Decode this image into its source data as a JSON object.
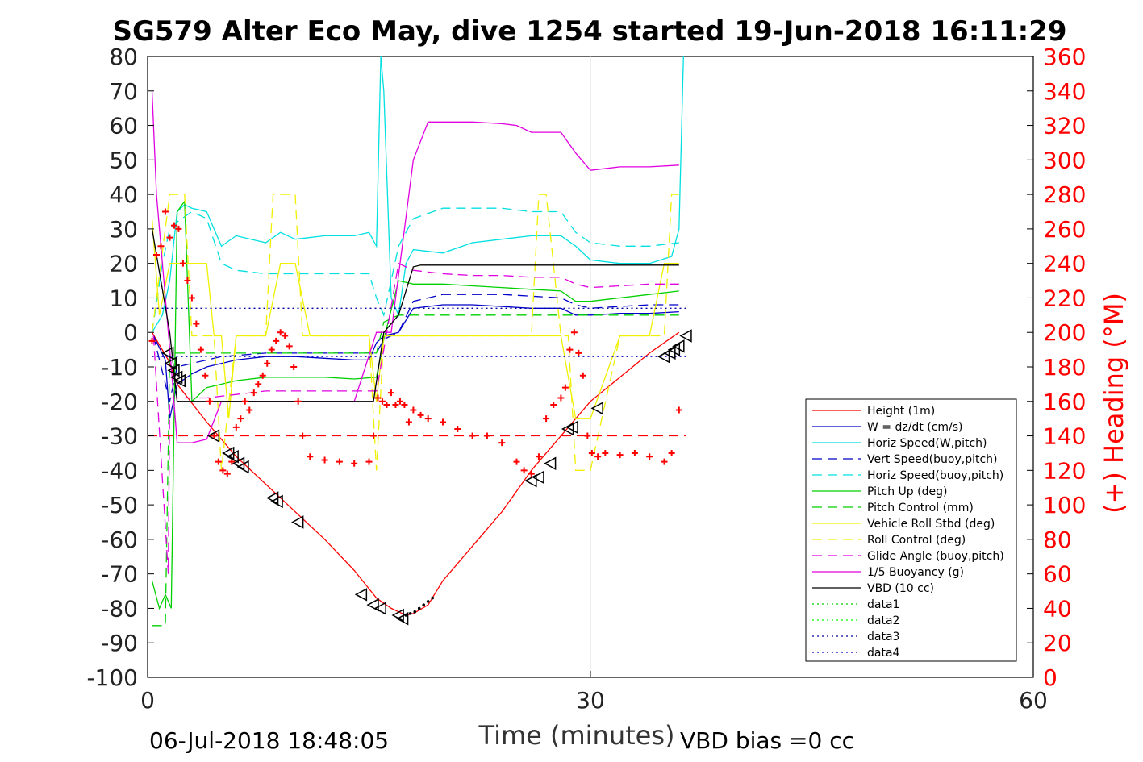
{
  "chart_data": {
    "type": "line",
    "title": "SG579 Alter Eco May, dive 1254 started 19-Jun-2018 16:11:29",
    "xlabel": "Time (minutes)",
    "ylabel_right": "(+) Heading (°M)",
    "xlim": [
      0,
      60
    ],
    "ylim": [
      -100,
      80
    ],
    "ylim_right": [
      0,
      360
    ],
    "x_ticks": [
      "0",
      "30",
      "60"
    ],
    "y_ticks": [
      "80",
      "70",
      "60",
      "50",
      "40",
      "30",
      "20",
      "10",
      "0",
      "-10",
      "-20",
      "-30",
      "-40",
      "-50",
      "-60",
      "-70",
      "-80",
      "-90",
      "-100"
    ],
    "y_right_ticks": [
      "360",
      "340",
      "320",
      "300",
      "280",
      "260",
      "240",
      "220",
      "200",
      "180",
      "160",
      "140",
      "120",
      "100",
      "80",
      "60",
      "40",
      "20",
      "0"
    ],
    "grid": "x at 30",
    "legend_position": "bottom-right",
    "footer_left": "06-Jul-2018 18:48:05",
    "footer_right": "VBD bias =0 cc",
    "colors": {
      "red": "#ff0000",
      "blue": "#0000c8",
      "cyan": "#00e0e0",
      "green": "#00d000",
      "yellow": "#f0f000",
      "magenta": "#e000e0",
      "black": "#000000",
      "data1": "#00d000",
      "data2": "#00ff00",
      "data3": "#0000a0",
      "data4": "#0000c8"
    },
    "series": [
      {
        "name": "Height (1m)",
        "color": "red",
        "dash": "solid",
        "x": [
          0.3,
          1.4,
          2,
          4,
          6,
          8,
          10,
          12,
          14,
          15.5,
          16.5,
          17,
          17.5,
          18,
          19,
          20,
          22,
          24,
          26,
          28,
          30,
          32,
          34,
          36
        ],
        "y": [
          0,
          -8,
          -15,
          -26,
          -36,
          -44,
          -52,
          -60,
          -69,
          -77,
          -80,
          -81,
          -82,
          -81.5,
          -79,
          -72,
          -62,
          -52,
          -40,
          -30,
          -20,
          -13,
          -6,
          0
        ]
      },
      {
        "name": "W = dz/dt (cm/s)",
        "color": "blue",
        "dash": "solid",
        "x": [
          0.4,
          1.2,
          1.5,
          2,
          3,
          4,
          6,
          8,
          10,
          12,
          14,
          15,
          15.5,
          16,
          17,
          18,
          20,
          22,
          24,
          26,
          28,
          29,
          30,
          32,
          34,
          36
        ],
        "y": [
          -1,
          -8,
          -25,
          -15,
          -12,
          -10,
          -8,
          -7,
          -7,
          -7.5,
          -8,
          -8,
          -3,
          -1,
          0,
          7,
          8,
          8,
          7.5,
          7,
          7,
          5,
          5,
          5.5,
          5.5,
          6
        ]
      },
      {
        "name": "Horiz Speed(W,pitch)",
        "color": "cyan",
        "dash": "solid",
        "x": [
          0.3,
          1,
          1.5,
          2,
          2.5,
          3,
          4,
          5,
          6,
          7,
          8,
          9,
          10,
          12,
          14,
          15,
          15.5,
          15.8,
          16,
          16.5,
          17,
          17.5,
          18,
          20,
          22,
          24,
          26,
          28,
          29,
          30,
          32,
          34,
          35.5,
          36,
          36.3
        ],
        "y": [
          0,
          5,
          15,
          35,
          37,
          36,
          35,
          25,
          28,
          27,
          26,
          29,
          27,
          28,
          28,
          29,
          25,
          80,
          70,
          10,
          5,
          20,
          24,
          23,
          26,
          27,
          28,
          28,
          25,
          21,
          20,
          20,
          22,
          30,
          80
        ]
      },
      {
        "name": "Vert Speed(buoy,pitch)",
        "color": "blue",
        "dash": "dash",
        "x": [
          0.4,
          1.5,
          2,
          3,
          5,
          8,
          10,
          12,
          14,
          15.5,
          16,
          17,
          18,
          20,
          24,
          26,
          28,
          29,
          30,
          32,
          34,
          36
        ],
        "y": [
          -1,
          -20,
          -10,
          -9,
          -7,
          -6,
          -6,
          -6,
          -6,
          -6,
          -2,
          0,
          9,
          11,
          11,
          10.5,
          10,
          8,
          7,
          7.5,
          8,
          8
        ]
      },
      {
        "name": "Horiz Speed(buoy,pitch)",
        "color": "cyan",
        "dash": "dash",
        "x": [
          0.3,
          1,
          1.5,
          2,
          3,
          4,
          5,
          6,
          8,
          10,
          12,
          14,
          15,
          15.5,
          16,
          17,
          18,
          20,
          22,
          24,
          26,
          28,
          29,
          30,
          32,
          34,
          36
        ],
        "y": [
          0,
          20,
          30,
          32,
          35,
          33,
          20,
          18,
          17,
          17,
          17,
          17,
          17,
          10,
          5,
          25,
          33,
          36,
          36,
          36,
          35,
          35,
          29,
          26,
          25,
          25,
          26
        ]
      },
      {
        "name": "Pitch Up (deg)",
        "color": "green",
        "dash": "solid",
        "x": [
          0.3,
          0.8,
          1.2,
          1.6,
          2,
          2.5,
          3,
          4,
          6,
          8,
          10,
          12,
          14,
          15.5,
          16,
          17,
          18,
          20,
          22,
          24,
          26,
          28,
          29,
          30,
          32,
          34,
          36
        ],
        "y": [
          -72,
          -80,
          -76,
          -80,
          35,
          38,
          -20,
          -16,
          -14,
          -13,
          -13,
          -13,
          -13.5,
          -13,
          -2,
          15,
          14,
          14,
          13.5,
          13,
          12.5,
          12,
          9,
          9,
          10,
          11,
          12
        ]
      },
      {
        "name": "Pitch Control (mm)",
        "color": "green",
        "dash": "dash",
        "x": [
          0.3,
          1.2,
          1.5,
          2,
          2.5,
          4,
          6,
          8,
          10,
          12,
          14,
          15.5,
          16,
          17,
          18,
          20,
          22,
          24,
          26,
          28,
          30,
          32,
          34,
          36
        ],
        "y": [
          -85,
          -85,
          -6,
          -6,
          -6,
          -6,
          -6,
          -6,
          -6,
          -6,
          -6,
          -6,
          3,
          5,
          5,
          5,
          5,
          5,
          5,
          5,
          5,
          5,
          5,
          5
        ]
      },
      {
        "name": "Vehicle Roll Stbd (deg)",
        "color": "yellow",
        "dash": "solid",
        "x": [
          0.3,
          0.8,
          1.5,
          2,
          3,
          4,
          4.5,
          5,
          5.5,
          6,
          7,
          8,
          9,
          10,
          11,
          12,
          14,
          15,
          15.5,
          16,
          18,
          20,
          22,
          24,
          26,
          28,
          29,
          30,
          32,
          34,
          35,
          36
        ],
        "y": [
          33,
          5,
          20,
          20,
          20,
          20,
          -1,
          -1,
          -25,
          -1,
          -1,
          -1,
          20,
          20,
          -1,
          -1,
          -1,
          -1,
          -20,
          -1,
          -1,
          -1,
          -1,
          -1,
          -1,
          -1,
          -25,
          -25,
          -1,
          -1,
          20,
          20
        ]
      },
      {
        "name": "Roll Control (deg)",
        "color": "yellow",
        "dash": "dash",
        "x": [
          0.3,
          1.5,
          2.5,
          3,
          4.5,
          5,
          6,
          8,
          8.5,
          9,
          10,
          10.5,
          12,
          14,
          15,
          15.5,
          16,
          18,
          20,
          24,
          26,
          26.5,
          27,
          28,
          28.5,
          29,
          30,
          32,
          34,
          35,
          35.5,
          36
        ],
        "y": [
          0,
          40,
          40,
          -1,
          -1,
          -40,
          -1,
          -1,
          40,
          40,
          40,
          -1,
          -1,
          -1,
          -1,
          -40,
          -1,
          -1,
          -1,
          -1,
          -1,
          40,
          40,
          -1,
          -1,
          -40,
          -40,
          -1,
          -1,
          -1,
          40,
          40
        ]
      },
      {
        "name": "Glide Angle (buoy,pitch)",
        "color": "magenta",
        "dash": "dash",
        "x": [
          0.4,
          1.4,
          1.5,
          2,
          3,
          4,
          6,
          8,
          10,
          12,
          14,
          15.5,
          16,
          17,
          18,
          20,
          22,
          24,
          26,
          28,
          29,
          30,
          32,
          34,
          36
        ],
        "y": [
          -1,
          -70,
          -19,
          -19,
          -19,
          -19,
          -18,
          -17,
          -17,
          -17,
          -17,
          -17,
          -5,
          20,
          18,
          17,
          16.5,
          16.5,
          16,
          16,
          14,
          13,
          13.5,
          14,
          14
        ]
      },
      {
        "name": "1/5 Buoyancy (g)",
        "color": "magenta",
        "dash": "solid",
        "x": [
          0.3,
          0.6,
          1.2,
          1.6,
          2,
          3,
          4,
          5,
          6,
          8,
          10,
          12,
          14,
          15.5,
          16,
          16.5,
          18,
          19,
          20,
          22,
          24,
          25,
          26,
          28,
          29,
          30,
          32,
          34,
          36
        ],
        "y": [
          70,
          40,
          10,
          -10,
          -32,
          -32,
          -31,
          -20,
          -20,
          -20,
          -20,
          -20,
          -20,
          0,
          0,
          0,
          50,
          61,
          61,
          61,
          60.5,
          60,
          58,
          58,
          52,
          47,
          48,
          48,
          48.5
        ]
      },
      {
        "name": "VBD (10 cc)",
        "color": "black",
        "dash": "solid",
        "x": [
          0.3,
          1.5,
          2,
          3,
          4,
          6,
          8,
          10,
          12,
          14,
          15.3,
          16,
          17,
          18,
          18.5,
          20,
          24,
          26,
          28,
          30,
          32,
          34,
          36
        ],
        "y": [
          30,
          0,
          -20,
          -20,
          -20,
          -20,
          -20,
          -20,
          -20,
          -20,
          -20,
          0,
          5,
          19,
          19.5,
          19.5,
          19.5,
          19.5,
          19.5,
          19.5,
          19.5,
          19.5,
          19.5
        ]
      },
      {
        "name": "data1",
        "color": "data1",
        "dash": "dot",
        "x": [],
        "y": []
      },
      {
        "name": "data2",
        "color": "data2",
        "dash": "dot",
        "x": [],
        "y": []
      },
      {
        "name": "data3",
        "color": "data3",
        "dash": "dot",
        "x": [
          0.3,
          36.5
        ],
        "y": [
          7,
          7
        ]
      },
      {
        "name": "data4",
        "color": "data4",
        "dash": "dot",
        "x": [
          0.3,
          36.5
        ],
        "y": [
          -7,
          -7
        ]
      }
    ],
    "reference_lines": [
      {
        "color": "red",
        "dash": "dash",
        "y": -30,
        "x": [
          0,
          36.5
        ]
      }
    ],
    "heading_points": {
      "color": "red",
      "x": [
        0.3,
        0.6,
        0.9,
        1.2,
        1.5,
        1.8,
        2.1,
        2.4,
        2.7,
        3.0,
        3.3,
        3.6,
        3.9,
        4.2,
        4.5,
        4.8,
        5.1,
        5.4,
        5.7,
        6.0,
        6.3,
        6.6,
        6.9,
        7.2,
        7.5,
        7.8,
        8.1,
        8.4,
        8.7,
        9.0,
        9.3,
        9.6,
        9.9,
        10.2,
        10.5,
        11,
        12,
        13,
        14,
        15,
        15.3,
        15.6,
        15.9,
        16.2,
        16.5,
        16.8,
        17.1,
        17.4,
        17.7,
        18,
        18.5,
        19,
        20,
        21,
        22,
        23,
        24,
        25,
        25.5,
        26,
        26.5,
        27,
        27.5,
        28,
        28.3,
        28.6,
        28.9,
        29.2,
        29.5,
        29.8,
        30.1,
        30.5,
        31,
        32,
        33,
        34,
        35,
        35.5,
        36
      ],
      "y": [
        195,
        245,
        250,
        270,
        255,
        262,
        260,
        240,
        230,
        220,
        205,
        190,
        175,
        160,
        140,
        125,
        120,
        118,
        125,
        145,
        150,
        160,
        155,
        165,
        170,
        175,
        182,
        190,
        195,
        200,
        198,
        192,
        180,
        160,
        140,
        128,
        126,
        125,
        124,
        125,
        140,
        162,
        160,
        158,
        165,
        158,
        160,
        158,
        148,
        155,
        152,
        150,
        148,
        144,
        140,
        140,
        136,
        125,
        120,
        118,
        128,
        150,
        158,
        162,
        168,
        190,
        200,
        188,
        175,
        140,
        130,
        128,
        130,
        129,
        130,
        128,
        125,
        130,
        155
      ]
    },
    "markers": {
      "color": "black",
      "points": [
        [
          1.4,
          -6
        ],
        [
          1.6,
          -9
        ],
        [
          1.8,
          -11
        ],
        [
          2.0,
          -13
        ],
        [
          2.2,
          -14
        ],
        [
          4.5,
          -30
        ],
        [
          5.5,
          -35
        ],
        [
          5.8,
          -36
        ],
        [
          6.2,
          -38
        ],
        [
          6.5,
          -39
        ],
        [
          8.5,
          -48
        ],
        [
          8.8,
          -49
        ],
        [
          10.2,
          -55
        ],
        [
          14.5,
          -76
        ],
        [
          15.3,
          -79
        ],
        [
          15.8,
          -80
        ],
        [
          17.0,
          -82
        ],
        [
          17.3,
          -83
        ],
        [
          26.0,
          -43
        ],
        [
          26.5,
          -42
        ],
        [
          27.3,
          -38
        ],
        [
          28.5,
          -28
        ],
        [
          28.8,
          -27.5
        ],
        [
          30.5,
          -22
        ],
        [
          35.0,
          -7
        ],
        [
          35.4,
          -6
        ],
        [
          35.7,
          -5
        ],
        [
          36.0,
          -4
        ],
        [
          36.5,
          -1
        ]
      ]
    },
    "trailing_dots": {
      "color": "black",
      "x": [
        17.5,
        17.8,
        18.1,
        18.4,
        18.7,
        19.0,
        19.3
      ],
      "y": [
        -82,
        -81.5,
        -81,
        -80,
        -79,
        -78,
        -77
      ]
    }
  }
}
